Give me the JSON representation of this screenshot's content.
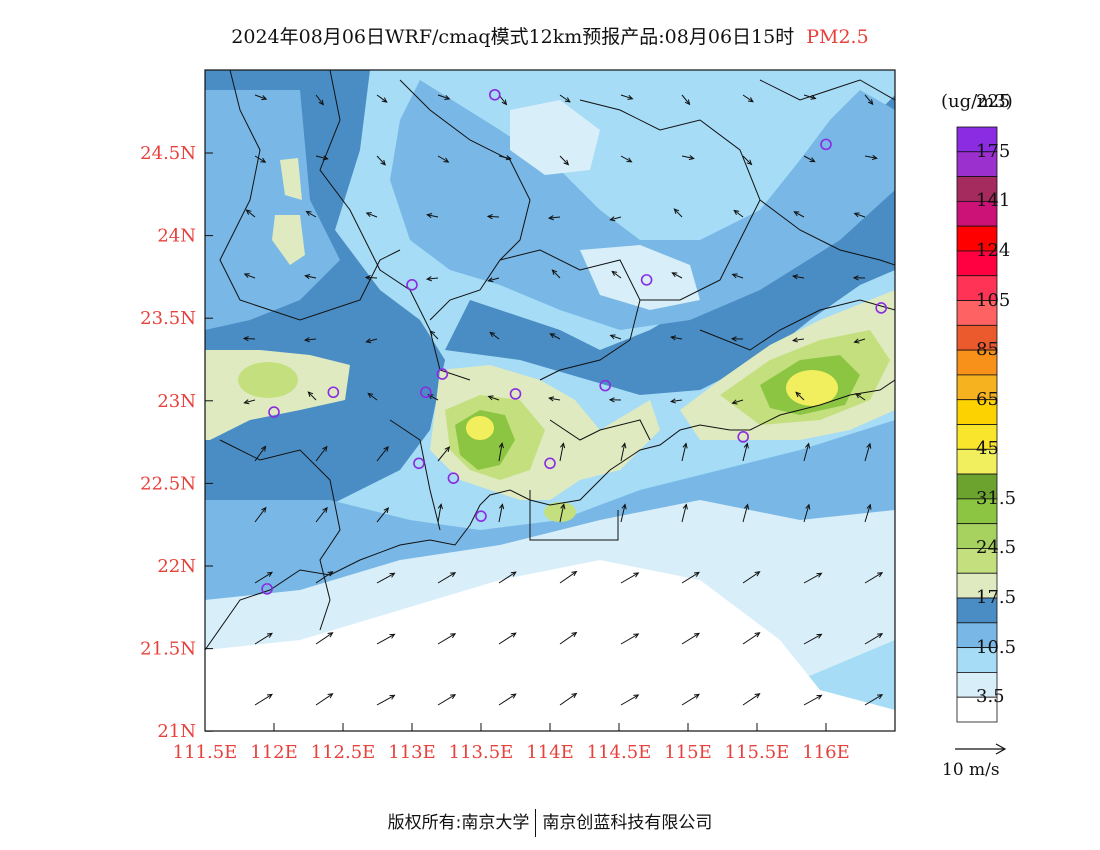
{
  "title": {
    "main": "2024年08月06日WRF/cmaq模式12km预报产品:08月06日15时",
    "pollutant": "PM2.5"
  },
  "map": {
    "lon_range": [
      111.5,
      116.5
    ],
    "lat_range": [
      21.0,
      25.0
    ],
    "x_ticks": [
      "111.5E",
      "112E",
      "112.5E",
      "113E",
      "113.5E",
      "114E",
      "114.5E",
      "115E",
      "115.5E",
      "116E"
    ],
    "y_ticks": [
      "24.5N",
      "24N",
      "23.5N",
      "23N",
      "22.5N",
      "22N",
      "21.5N",
      "21N"
    ],
    "station_color": "#8a2be2",
    "stations": [
      {
        "lon": 113.6,
        "lat": 24.85
      },
      {
        "lon": 116.0,
        "lat": 24.55
      },
      {
        "lon": 113.0,
        "lat": 23.7
      },
      {
        "lon": 114.7,
        "lat": 23.73
      },
      {
        "lon": 116.4,
        "lat": 23.56
      },
      {
        "lon": 113.22,
        "lat": 23.16
      },
      {
        "lon": 112.43,
        "lat": 23.05
      },
      {
        "lon": 113.1,
        "lat": 23.05
      },
      {
        "lon": 113.75,
        "lat": 23.04
      },
      {
        "lon": 114.4,
        "lat": 23.09
      },
      {
        "lon": 112.0,
        "lat": 22.93
      },
      {
        "lon": 115.4,
        "lat": 22.78
      },
      {
        "lon": 113.05,
        "lat": 22.62
      },
      {
        "lon": 114.0,
        "lat": 22.62
      },
      {
        "lon": 113.3,
        "lat": 22.53
      },
      {
        "lon": 113.5,
        "lat": 22.3
      },
      {
        "lon": 111.95,
        "lat": 21.86
      }
    ]
  },
  "legend": {
    "unit": "(ug/m3)",
    "colors": [
      "#ffffff",
      "#d8eef9",
      "#a6dcf6",
      "#79b8e6",
      "#4a8dc4",
      "#dfeac1",
      "#c4e07e",
      "#a8d260",
      "#8cc542",
      "#6ca32f",
      "#f2ef5e",
      "#f8e52c",
      "#fcd200",
      "#f6b21f",
      "#f7911a",
      "#ea5a2c",
      "#ff6262",
      "#ff3355",
      "#ff0040",
      "#ff0000",
      "#cc1177",
      "#a52a5e",
      "#9b30cf",
      "#8b2be2"
    ],
    "labels": [
      "3.5",
      "10.5",
      "17.5",
      "24.5",
      "31.5",
      "45",
      "65",
      "85",
      "105",
      "124",
      "141",
      "175",
      "225"
    ]
  },
  "wind": {
    "reference_label": "10 m/s"
  },
  "footer": {
    "left": "版权所有:南京大学",
    "right": "南京创蓝科技有限公司"
  }
}
